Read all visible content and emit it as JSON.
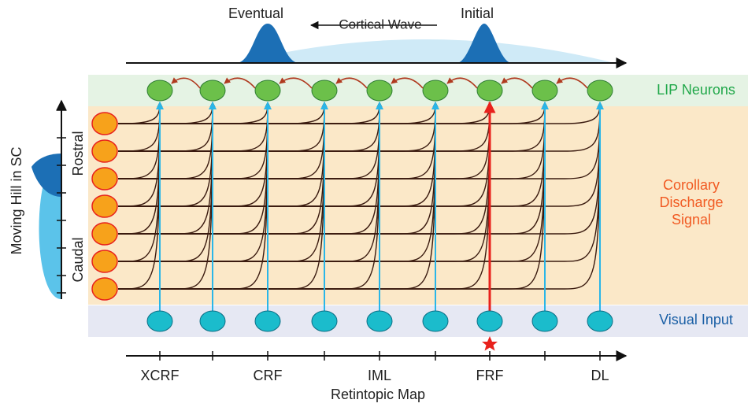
{
  "top": {
    "eventual": "Eventual",
    "wave": "Cortical Wave",
    "initial": "Initial"
  },
  "layers": {
    "lip": "LIP Neurons",
    "corollary": [
      "Corollary",
      "Discharge",
      "Signal"
    ],
    "visual": "Visual Input"
  },
  "sc": {
    "title": "Moving Hill in SC",
    "rostral": "Rostral",
    "caudal": "Caudal"
  },
  "map": {
    "labels": [
      "XCRF",
      "CRF",
      "IML",
      "FRF",
      "DL"
    ],
    "title": "Retintopic Map"
  }
}
